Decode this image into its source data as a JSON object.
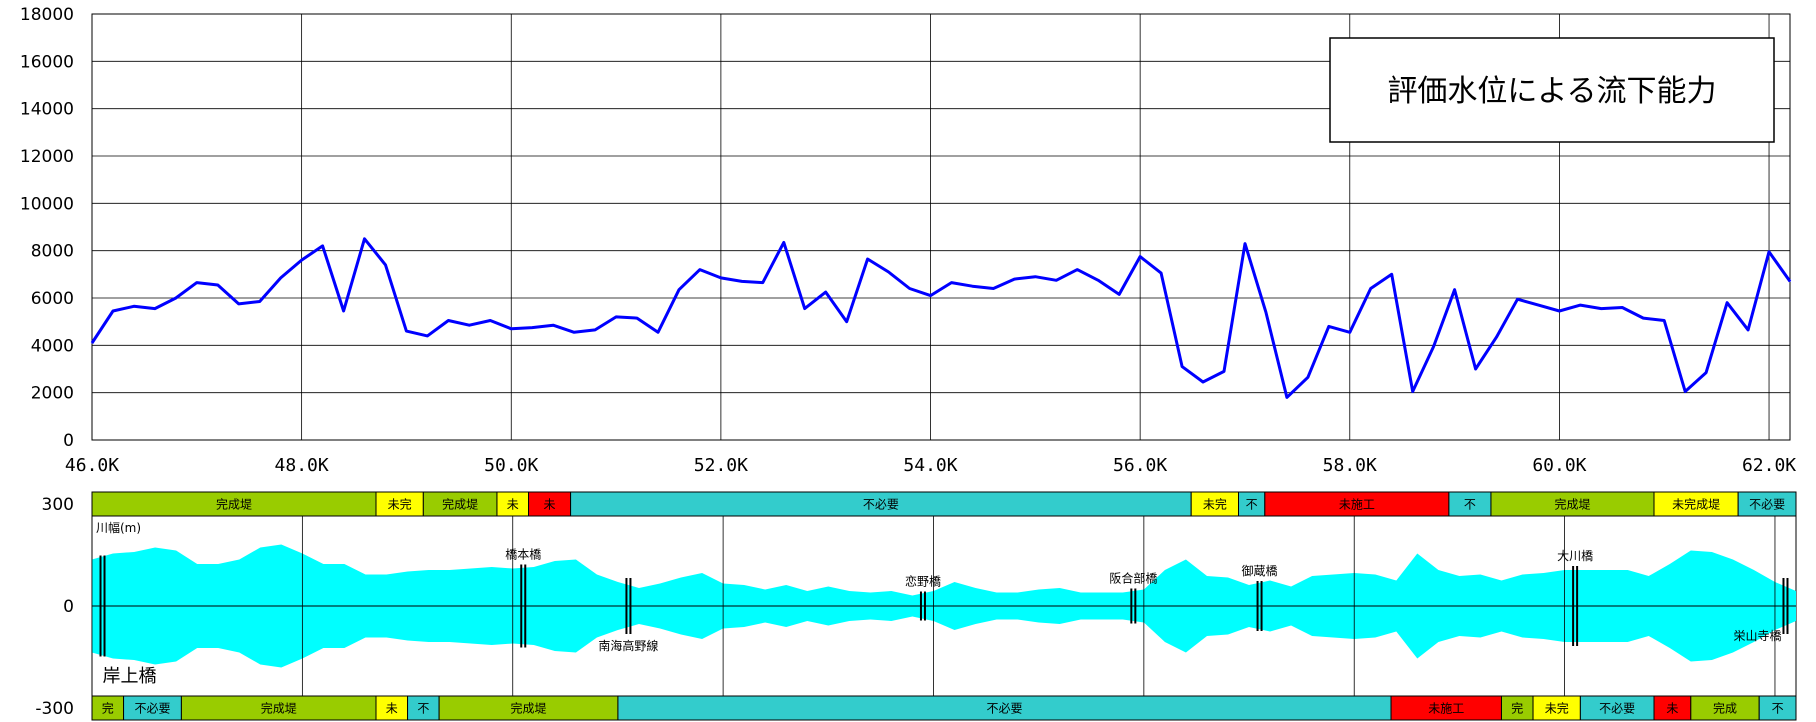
{
  "chart_data": [
    {
      "type": "line",
      "title": "評価水位による流下能力",
      "xlabel": "",
      "ylabel": "",
      "xlim": [
        46.0,
        62.2
      ],
      "ylim": [
        0,
        18000
      ],
      "grid": true,
      "y_ticks": [
        "0",
        "2000",
        "4000",
        "6000",
        "8000",
        "10000",
        "12000",
        "14000",
        "16000",
        "18000"
      ],
      "x_ticks": [
        {
          "x": 46.0,
          "label": "46.0K"
        },
        {
          "x": 48.0,
          "label": "48.0K"
        },
        {
          "x": 50.0,
          "label": "50.0K"
        },
        {
          "x": 52.0,
          "label": "52.0K"
        },
        {
          "x": 54.0,
          "label": "54.0K"
        },
        {
          "x": 56.0,
          "label": "56.0K"
        },
        {
          "x": 58.0,
          "label": "58.0K"
        },
        {
          "x": 60.0,
          "label": "60.0K"
        },
        {
          "x": 62.0,
          "label": "62.0K"
        }
      ],
      "series": [
        {
          "color": "#0000ff",
          "x": [
            46.0,
            46.2,
            46.4,
            46.6,
            46.8,
            47.0,
            47.2,
            47.4,
            47.6,
            47.8,
            48.0,
            48.2,
            48.4,
            48.6,
            48.8,
            49.0,
            49.2,
            49.4,
            49.6,
            49.8,
            50.0,
            50.2,
            50.4,
            50.6,
            50.8,
            51.0,
            51.2,
            51.4,
            51.6,
            51.8,
            52.0,
            52.2,
            52.4,
            52.6,
            52.8,
            53.0,
            53.2,
            53.4,
            53.6,
            53.8,
            54.0,
            54.2,
            54.4,
            54.6,
            54.8,
            55.0,
            55.2,
            55.4,
            55.6,
            55.8,
            56.0,
            56.2,
            56.4,
            56.6,
            56.8,
            57.0,
            57.2,
            57.4,
            57.6,
            57.8,
            58.0,
            58.2,
            58.4,
            58.6,
            58.8,
            59.0,
            59.2,
            59.4,
            59.6,
            59.8,
            60.0,
            60.2,
            60.4,
            60.6,
            60.8,
            61.0,
            61.2,
            61.4,
            61.6,
            61.8,
            62.0,
            62.2
          ],
          "y": [
            4100,
            5450,
            5650,
            5550,
            6000,
            6650,
            6550,
            5750,
            5850,
            6850,
            7600,
            8200,
            5450,
            8500,
            7400,
            4600,
            4400,
            5050,
            4850,
            5050,
            4700,
            4750,
            4850,
            4550,
            4650,
            5200,
            5150,
            4550,
            6350,
            7200,
            6850,
            6700,
            6650,
            8350,
            5550,
            6250,
            5000,
            7650,
            7100,
            6400,
            6100,
            6650,
            6500,
            6400,
            6800,
            6900,
            6750,
            7200,
            6750,
            6150,
            7750,
            7050,
            3100,
            2450,
            2900,
            8300,
            5400,
            1800,
            2650,
            4800,
            4550,
            6400,
            7000,
            2050,
            3950,
            6350,
            3000,
            4350,
            5950,
            5700,
            5450,
            5700,
            5550,
            5600,
            5150,
            5050,
            2050,
            2850,
            5800,
            4650,
            7950,
            6700
          ]
        }
      ]
    },
    {
      "type": "area",
      "title": "",
      "xlim": [
        46.0,
        62.2
      ],
      "ylim": [
        -300,
        300
      ],
      "y_ticks": [
        {
          "y": 300,
          "label": "300"
        },
        {
          "y": 0,
          "label": "0"
        },
        {
          "y": -300,
          "label": "-300"
        }
      ],
      "label_top_left": "川幅(m)",
      "fill_color": "#00ffff",
      "x": [
        46.0,
        46.2,
        46.4,
        46.6,
        46.8,
        47.0,
        47.2,
        47.4,
        47.6,
        47.8,
        48.0,
        48.2,
        48.4,
        48.6,
        48.8,
        49.0,
        49.2,
        49.4,
        49.6,
        49.8,
        50.0,
        50.2,
        50.4,
        50.6,
        50.8,
        51.0,
        51.2,
        51.4,
        51.6,
        51.8,
        52.0,
        52.2,
        52.4,
        52.6,
        52.8,
        53.0,
        53.2,
        53.4,
        53.6,
        53.8,
        54.0,
        54.2,
        54.4,
        54.6,
        54.8,
        55.0,
        55.2,
        55.4,
        55.6,
        55.8,
        56.0,
        56.2,
        56.4,
        56.6,
        56.8,
        57.0,
        57.2,
        57.4,
        57.6,
        57.8,
        58.0,
        58.2,
        58.4,
        58.6,
        58.8,
        59.0,
        59.2,
        59.4,
        59.6,
        59.8,
        60.0,
        60.2,
        60.4,
        60.6,
        60.8,
        61.0,
        61.2,
        61.4,
        61.6,
        61.8,
        62.0,
        62.2
      ],
      "half_width": [
        155,
        175,
        180,
        195,
        185,
        140,
        140,
        155,
        195,
        205,
        175,
        140,
        140,
        105,
        105,
        115,
        120,
        120,
        125,
        130,
        125,
        130,
        150,
        155,
        105,
        80,
        60,
        75,
        95,
        110,
        75,
        70,
        55,
        70,
        50,
        65,
        50,
        45,
        50,
        35,
        50,
        80,
        60,
        45,
        45,
        55,
        60,
        45,
        45,
        45,
        55,
        120,
        155,
        100,
        95,
        70,
        85,
        65,
        100,
        105,
        110,
        105,
        85,
        175,
        120,
        100,
        105,
        85,
        105,
        110,
        120,
        120,
        120,
        120,
        100,
        140,
        185,
        180,
        155,
        120,
        80,
        50
      ],
      "bridges": [
        {
          "x": 46.1,
          "name": "岸上橋",
          "label_pos": "bottom"
        },
        {
          "x": 50.1,
          "name": "橋本橋",
          "label_pos": "top"
        },
        {
          "x": 51.1,
          "name": "南海高野線",
          "label_pos": "bottom"
        },
        {
          "x": 53.9,
          "name": "恋野橋",
          "label_pos": "top"
        },
        {
          "x": 55.9,
          "name": "阪合部橋",
          "label_pos": "top"
        },
        {
          "x": 57.1,
          "name": "御蔵橋",
          "label_pos": "top"
        },
        {
          "x": 60.1,
          "name": "大川橋",
          "label_pos": "top"
        },
        {
          "x": 62.1,
          "name": "栄山寺橋",
          "label_pos": "bottom"
        }
      ],
      "top_bar": [
        {
          "from": 46.0,
          "to": 48.7,
          "label": "完成堤",
          "color": "#99cc00"
        },
        {
          "from": 48.7,
          "to": 49.15,
          "label": "未完",
          "color": "#ffff00"
        },
        {
          "from": 49.15,
          "to": 49.85,
          "label": "完成堤",
          "color": "#99cc00"
        },
        {
          "from": 49.85,
          "to": 50.15,
          "label": "未",
          "color": "#ffff00"
        },
        {
          "from": 50.15,
          "to": 50.55,
          "label": "未",
          "color": "#ff0000"
        },
        {
          "from": 50.55,
          "to": 56.45,
          "label": "不必要",
          "color": "#33cccc"
        },
        {
          "from": 56.45,
          "to": 56.9,
          "label": "未完",
          "color": "#ffff00"
        },
        {
          "from": 56.9,
          "to": 57.15,
          "label": "不",
          "color": "#33cccc"
        },
        {
          "from": 57.15,
          "to": 58.9,
          "label": "未施工",
          "color": "#ff0000"
        },
        {
          "from": 58.9,
          "to": 59.3,
          "label": "不",
          "color": "#33cccc"
        },
        {
          "from": 59.3,
          "to": 60.85,
          "label": "完成堤",
          "color": "#99cc00"
        },
        {
          "from": 60.85,
          "to": 61.65,
          "label": "未完成堤",
          "color": "#ffff00"
        },
        {
          "from": 61.65,
          "to": 62.2,
          "label": "不必要",
          "color": "#33cccc"
        }
      ],
      "bottom_bar": [
        {
          "from": 46.0,
          "to": 46.3,
          "label": "完",
          "color": "#99cc00"
        },
        {
          "from": 46.3,
          "to": 46.85,
          "label": "不必要",
          "color": "#33cccc"
        },
        {
          "from": 46.85,
          "to": 48.7,
          "label": "完成堤",
          "color": "#99cc00"
        },
        {
          "from": 48.7,
          "to": 49.0,
          "label": "未",
          "color": "#ffff00"
        },
        {
          "from": 49.0,
          "to": 49.3,
          "label": "不",
          "color": "#33cccc"
        },
        {
          "from": 49.3,
          "to": 51.0,
          "label": "完成堤",
          "color": "#99cc00"
        },
        {
          "from": 51.0,
          "to": 58.35,
          "label": "不必要",
          "color": "#33cccc"
        },
        {
          "from": 58.35,
          "to": 59.4,
          "label": "未施工",
          "color": "#ff0000"
        },
        {
          "from": 59.4,
          "to": 59.7,
          "label": "完",
          "color": "#99cc00"
        },
        {
          "from": 59.7,
          "to": 60.15,
          "label": "未完",
          "color": "#ffff00"
        },
        {
          "from": 60.15,
          "to": 60.85,
          "label": "不必要",
          "color": "#33cccc"
        },
        {
          "from": 60.85,
          "to": 61.2,
          "label": "未",
          "color": "#ff0000"
        },
        {
          "from": 61.2,
          "to": 61.85,
          "label": "完成",
          "color": "#99cc00"
        },
        {
          "from": 61.85,
          "to": 62.2,
          "label": "不",
          "color": "#33cccc"
        }
      ]
    }
  ]
}
